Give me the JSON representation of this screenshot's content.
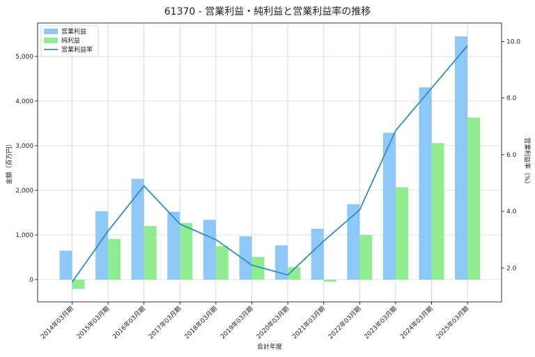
{
  "chart_data": {
    "type": "bar",
    "title": "61370 - 営業利益・純利益と営業利益率の推移",
    "xlabel": "会計年度",
    "ylabel": "金額（百万円）",
    "y2label": "営業利益率（%）",
    "categories": [
      "2014年03月期",
      "2015年03月期",
      "2016年03月期",
      "2017年03月期",
      "2018年03月期",
      "2019年03月期",
      "2020年03月期",
      "2021年03月期",
      "2022年03月期",
      "2023年03月期",
      "2024年03月期",
      "2025年03月期"
    ],
    "series": [
      {
        "name": "営業利益",
        "type": "bar",
        "axis": "left",
        "color": "#8ec8f6",
        "values": [
          650,
          1530,
          2260,
          1520,
          1340,
          970,
          770,
          1140,
          1690,
          3290,
          4310,
          5450
        ]
      },
      {
        "name": "純利益",
        "type": "bar",
        "axis": "left",
        "color": "#90ec90",
        "values": [
          -210,
          910,
          1200,
          1270,
          750,
          510,
          280,
          -50,
          1000,
          2070,
          3060,
          3630
        ]
      },
      {
        "name": "営業利益率",
        "type": "line",
        "axis": "right",
        "color": "#2f8bc7",
        "values": [
          1.5,
          3.3,
          4.9,
          3.55,
          3.0,
          2.1,
          1.75,
          2.95,
          4.05,
          6.85,
          8.35,
          9.85
        ]
      }
    ],
    "ylim": [
      -500,
      5750
    ],
    "y2lim": [
      0.8,
      10.65
    ],
    "yticks": [
      "0",
      "1,000",
      "2,000",
      "3,000",
      "4,000",
      "5,000"
    ],
    "y2ticks": [
      "2.0",
      "4.0",
      "6.0",
      "8.0",
      "10.0"
    ],
    "grid": true,
    "legend": "top-left"
  }
}
